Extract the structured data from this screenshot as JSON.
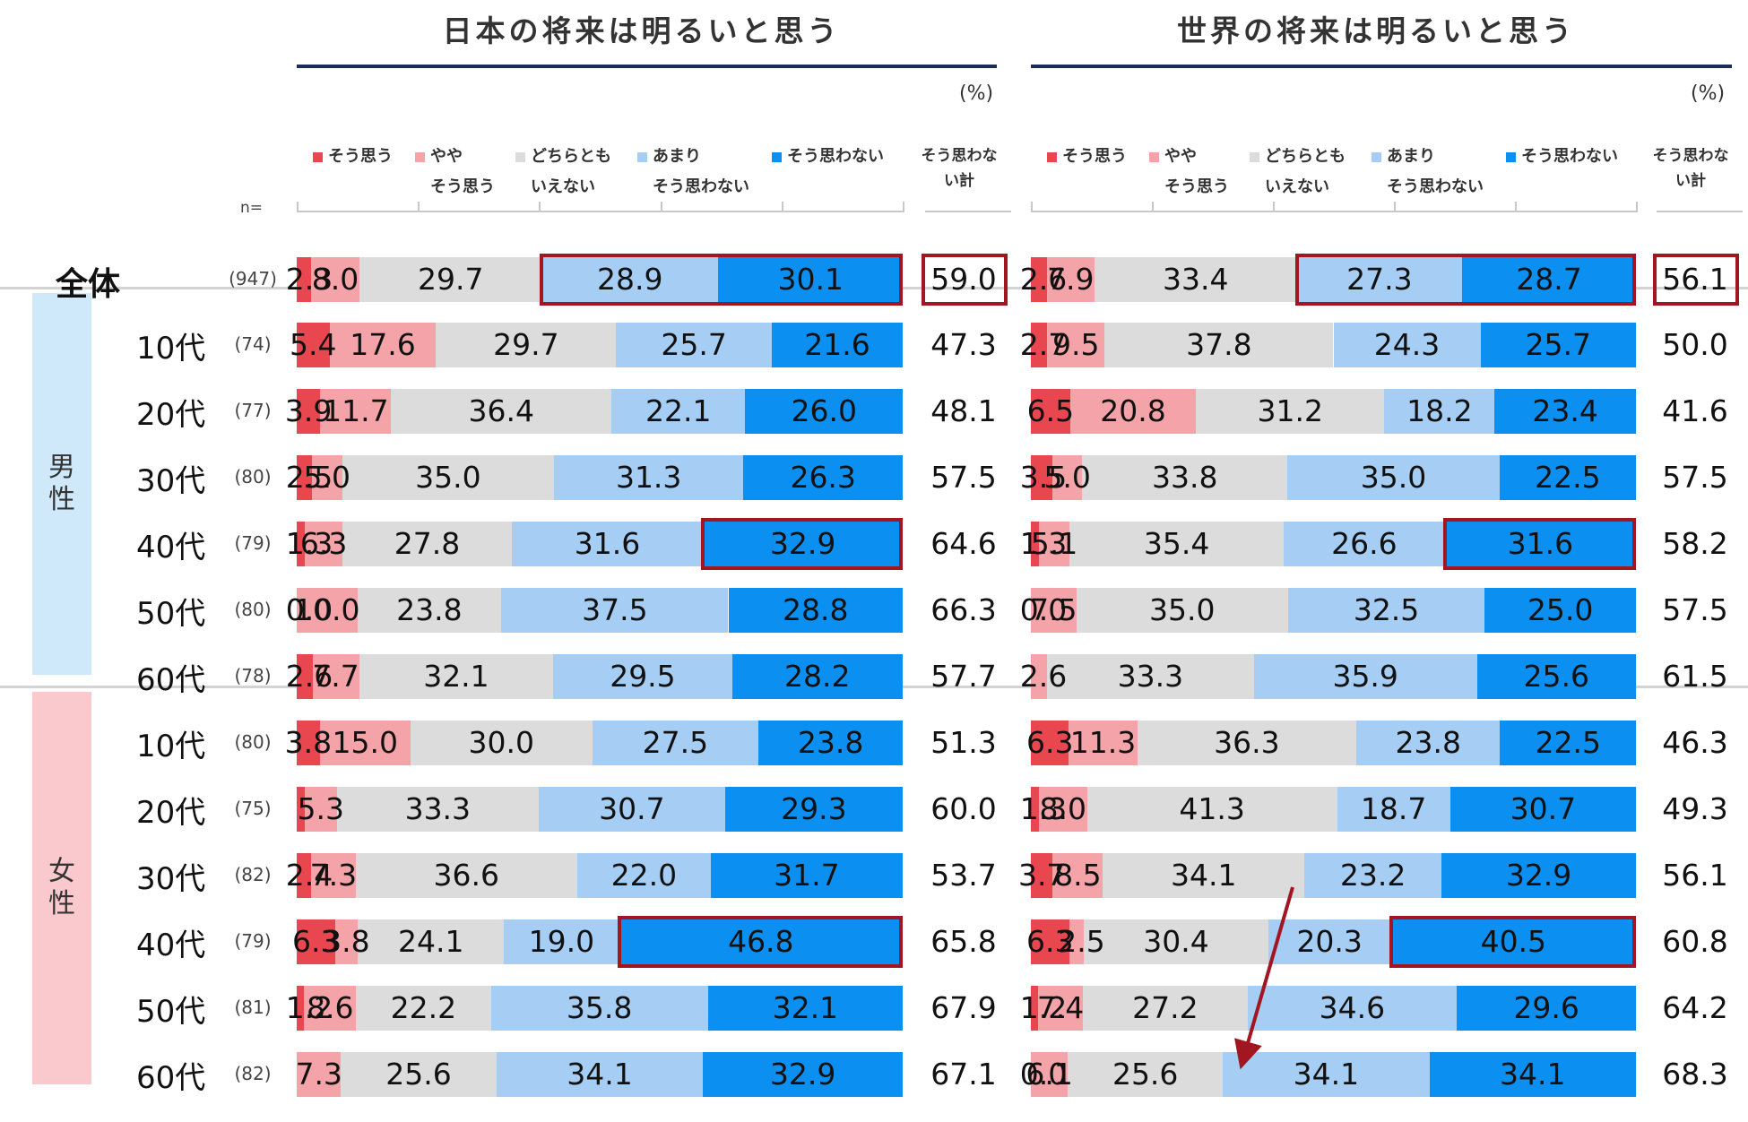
{
  "percent_unit": "(%)",
  "n_header": "n=",
  "legend": [
    {
      "label": "そう思う",
      "color": "#e8474f"
    },
    {
      "label": "やや\nそう思う",
      "color": "#f4a4a8"
    },
    {
      "label": "どちらとも\nいえない",
      "color": "#dcdcdc"
    },
    {
      "label": "あまり\nそう思わない",
      "color": "#a6cdf3"
    },
    {
      "label": "そう思わない",
      "color": "#0b8ff0"
    }
  ],
  "total_header": "そう思わな\nい計",
  "group_labels": {
    "male": "男\n性",
    "female": "女\n性"
  },
  "chart_data": [
    {
      "type": "bar",
      "stacked": true,
      "orientation": "horizontal",
      "title": "日本の将来は明るいと思う",
      "unit": "(%)",
      "series_names": [
        "そう思う",
        "やや\nそう思う",
        "どちらとも\nいえない",
        "あまり\nそう思わない",
        "そう思わない"
      ],
      "total_label": "そう思わない計",
      "rows": [
        {
          "label": "全体",
          "group": "",
          "n": "(947)",
          "values": [
            2.3,
            8.0,
            29.7,
            28.9,
            30.1
          ],
          "total": "59.0"
        },
        {
          "label": "10代",
          "group": "男性",
          "n": "(74)",
          "values": [
            5.4,
            17.6,
            29.7,
            25.7,
            21.6
          ],
          "total": "47.3"
        },
        {
          "label": "20代",
          "group": "男性",
          "n": "(77)",
          "values": [
            3.9,
            11.7,
            36.4,
            22.1,
            26.0
          ],
          "total": "48.1"
        },
        {
          "label": "30代",
          "group": "男性",
          "n": "(80)",
          "values": [
            2.5,
            5.0,
            35.0,
            31.3,
            26.3
          ],
          "total": "57.5"
        },
        {
          "label": "40代",
          "group": "男性",
          "n": "(79)",
          "values": [
            1.3,
            6.3,
            27.8,
            31.6,
            32.9
          ],
          "total": "64.6"
        },
        {
          "label": "50代",
          "group": "男性",
          "n": "(80)",
          "values": [
            0.0,
            10.0,
            23.8,
            37.5,
            28.8
          ],
          "total": "66.3"
        },
        {
          "label": "60代",
          "group": "男性",
          "n": "(78)",
          "values": [
            2.6,
            7.7,
            32.1,
            29.5,
            28.2
          ],
          "total": "57.7"
        },
        {
          "label": "10代",
          "group": "女性",
          "n": "(80)",
          "values": [
            3.8,
            15.0,
            30.0,
            27.5,
            23.8
          ],
          "total": "51.3"
        },
        {
          "label": "20代",
          "group": "女性",
          "n": "(75)",
          "values": [
            1.3,
            5.3,
            33.3,
            30.7,
            29.3
          ],
          "total": "60.0"
        },
        {
          "label": "30代",
          "group": "女性",
          "n": "(82)",
          "values": [
            2.4,
            7.3,
            36.6,
            22.0,
            31.7
          ],
          "total": "53.7"
        },
        {
          "label": "40代",
          "group": "女性",
          "n": "(79)",
          "values": [
            6.3,
            3.8,
            24.1,
            19.0,
            46.8
          ],
          "total": "65.8"
        },
        {
          "label": "50代",
          "group": "女性",
          "n": "(81)",
          "values": [
            1.2,
            8.6,
            22.2,
            35.8,
            32.1
          ],
          "total": "67.9"
        },
        {
          "label": "60代",
          "group": "女性",
          "n": "(82)",
          "values": [
            0.0,
            7.3,
            25.6,
            34.1,
            32.9
          ],
          "total": "67.1"
        }
      ],
      "segment_labels": [
        [
          "2.3",
          "8.0",
          "29.7",
          "28.9",
          "30.1"
        ],
        [
          "5.4",
          "17.6",
          "29.7",
          "25.7",
          "21.6"
        ],
        [
          "3.9",
          "11.7",
          "36.4",
          "22.1",
          "26.0"
        ],
        [
          "2.5",
          "5.0",
          "35.0",
          "31.3",
          "26.3"
        ],
        [
          "1.3",
          "6.3",
          "27.8",
          "31.6",
          "32.9"
        ],
        [
          "0.0",
          "10.0",
          "23.8",
          "37.5",
          "28.8"
        ],
        [
          "2.6",
          "7.7",
          "32.1",
          "29.5",
          "28.2"
        ],
        [
          "3.8",
          "15.0",
          "30.0",
          "27.5",
          "23.8"
        ],
        [
          "",
          "5.3",
          "33.3",
          "30.7",
          "29.3"
        ],
        [
          "2.4",
          "7.3",
          "36.6",
          "22.0",
          "31.7"
        ],
        [
          "6.3",
          "3.8",
          "24.1",
          "19.0",
          "46.8"
        ],
        [
          "1.2",
          "8.6",
          "22.2",
          "35.8",
          "32.1"
        ],
        [
          "",
          "7.3",
          "25.6",
          "34.1",
          "32.9"
        ]
      ],
      "highlights": [
        [
          0,
          3
        ],
        [
          0,
          4
        ],
        [
          0,
          "total"
        ],
        [
          4,
          4
        ],
        [
          10,
          4
        ]
      ]
    },
    {
      "type": "bar",
      "stacked": true,
      "orientation": "horizontal",
      "title": "世界の将来は明るいと思う",
      "unit": "(%)",
      "series_names": [
        "そう思う",
        "やや\nそう思う",
        "どちらとも\nいえない",
        "あまり\nそう思わない",
        "そう思わない"
      ],
      "total_label": "そう思わない計",
      "rows": [
        {
          "label": "全体",
          "group": "",
          "n": "(947)",
          "values": [
            2.6,
            7.9,
            33.4,
            27.3,
            28.7
          ],
          "total": "56.1"
        },
        {
          "label": "10代",
          "group": "男性",
          "n": "(74)",
          "values": [
            2.7,
            9.5,
            37.8,
            24.3,
            25.7
          ],
          "total": "50.0"
        },
        {
          "label": "20代",
          "group": "男性",
          "n": "(77)",
          "values": [
            6.5,
            20.8,
            31.2,
            18.2,
            23.4
          ],
          "total": "41.6"
        },
        {
          "label": "30代",
          "group": "男性",
          "n": "(80)",
          "values": [
            3.5,
            5.0,
            33.8,
            35.0,
            22.5
          ],
          "total": "57.5"
        },
        {
          "label": "40代",
          "group": "男性",
          "n": "(79)",
          "values": [
            1.3,
            5.1,
            35.4,
            26.6,
            31.6
          ],
          "total": "58.2"
        },
        {
          "label": "50代",
          "group": "男性",
          "n": "(80)",
          "values": [
            0.0,
            7.5,
            35.0,
            32.5,
            25.0
          ],
          "total": "57.5"
        },
        {
          "label": "60代",
          "group": "男性",
          "n": "(78)",
          "values": [
            0.0,
            2.6,
            33.3,
            35.9,
            25.6
          ],
          "total": "61.5"
        },
        {
          "label": "10代",
          "group": "女性",
          "n": "(80)",
          "values": [
            6.3,
            11.3,
            36.3,
            23.8,
            22.5
          ],
          "total": "46.3"
        },
        {
          "label": "20代",
          "group": "女性",
          "n": "(75)",
          "values": [
            1.3,
            8.0,
            41.3,
            18.7,
            30.7
          ],
          "total": "49.3"
        },
        {
          "label": "30代",
          "group": "女性",
          "n": "(82)",
          "values": [
            3.7,
            8.5,
            34.1,
            23.2,
            32.9
          ],
          "total": "56.1"
        },
        {
          "label": "40代",
          "group": "女性",
          "n": "(79)",
          "values": [
            6.3,
            2.5,
            30.4,
            20.3,
            40.5
          ],
          "total": "60.8"
        },
        {
          "label": "50代",
          "group": "女性",
          "n": "(81)",
          "values": [
            1.2,
            7.4,
            27.2,
            34.6,
            29.6
          ],
          "total": "64.2"
        },
        {
          "label": "60代",
          "group": "女性",
          "n": "(82)",
          "values": [
            0.0,
            6.1,
            25.6,
            34.1,
            34.1
          ],
          "total": "68.3"
        }
      ],
      "segment_labels": [
        [
          "2.6",
          "7.9",
          "33.4",
          "27.3",
          "28.7"
        ],
        [
          "2.7",
          "9.5",
          "37.8",
          "24.3",
          "25.7"
        ],
        [
          "6.5",
          "20.8",
          "31.2",
          "18.2",
          "23.4"
        ],
        [
          "3.5",
          "5.0",
          "33.8",
          "35.0",
          "22.5"
        ],
        [
          "1.3",
          "5.1",
          "35.4",
          "26.6",
          "31.6"
        ],
        [
          "0.0",
          "7.5",
          "35.0",
          "32.5",
          "25.0"
        ],
        [
          "",
          "2.6",
          "33.3",
          "35.9",
          "25.6"
        ],
        [
          "6.3",
          "11.3",
          "36.3",
          "23.8",
          "22.5"
        ],
        [
          "1.3",
          "8.0",
          "41.3",
          "18.7",
          "30.7"
        ],
        [
          "3.7",
          "8.5",
          "34.1",
          "23.2",
          "32.9"
        ],
        [
          "6.3",
          "2.5",
          "30.4",
          "20.3",
          "40.5"
        ],
        [
          "1.2",
          "7.4",
          "27.2",
          "34.6",
          "29.6"
        ],
        [
          "0.0",
          "6.1",
          "25.6",
          "34.1",
          "34.1"
        ]
      ],
      "highlights": [
        [
          0,
          3
        ],
        [
          0,
          4
        ],
        [
          0,
          "total"
        ],
        [
          4,
          4
        ],
        [
          10,
          4
        ]
      ],
      "annotation": "trend-arrow"
    }
  ]
}
